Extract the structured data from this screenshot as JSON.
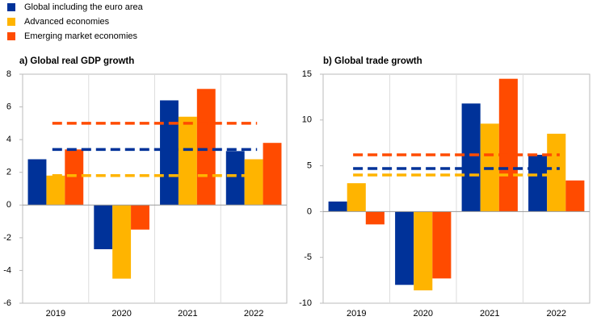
{
  "legend": [
    {
      "name": "Global including the euro area",
      "color": "#003299"
    },
    {
      "name": "Advanced economies",
      "color": "#ffb400"
    },
    {
      "name": "Emerging market economies",
      "color": "#ff4b00"
    }
  ],
  "chart_data": [
    {
      "type": "bar",
      "title": "a) Global real GDP growth",
      "categories": [
        "2019",
        "2020",
        "2021",
        "2022"
      ],
      "series": [
        {
          "color": "#003299",
          "values": [
            2.8,
            -2.7,
            6.4,
            3.3
          ],
          "average": 3.4
        },
        {
          "color": "#ffb400",
          "values": [
            1.8,
            -4.5,
            5.4,
            2.8
          ],
          "average": 1.8
        },
        {
          "color": "#ff4b00",
          "values": [
            3.4,
            -1.5,
            7.1,
            3.8
          ],
          "average": 5.0
        }
      ],
      "ylim": [
        -6,
        8
      ],
      "yticks": [
        -6,
        -4,
        -2,
        0,
        2,
        4,
        6,
        8
      ]
    },
    {
      "type": "bar",
      "title": "b) Global trade growth",
      "categories": [
        "2019",
        "2020",
        "2021",
        "2022"
      ],
      "series": [
        {
          "color": "#003299",
          "values": [
            1.1,
            -8.0,
            11.8,
            6.2
          ],
          "average": 4.7
        },
        {
          "color": "#ffb400",
          "values": [
            3.1,
            -8.6,
            9.6,
            8.5
          ],
          "average": 4.0
        },
        {
          "color": "#ff4b00",
          "values": [
            -1.4,
            -7.3,
            14.5,
            3.4
          ],
          "average": 6.2
        }
      ],
      "ylim": [
        -10,
        15
      ],
      "yticks": [
        -10,
        -5,
        0,
        5,
        10,
        15
      ]
    }
  ]
}
